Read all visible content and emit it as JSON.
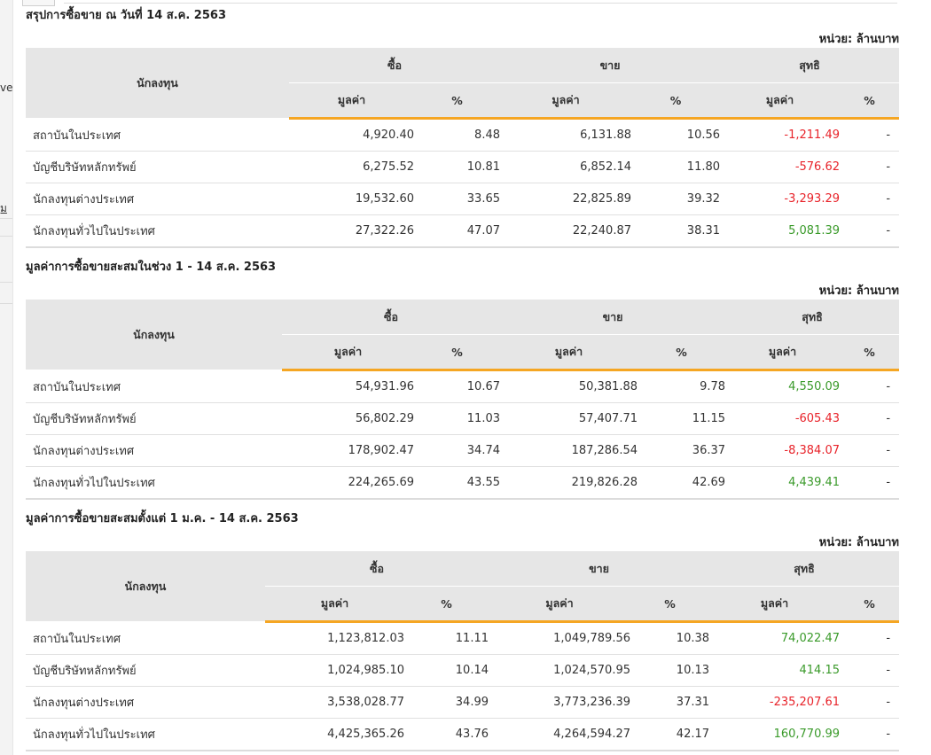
{
  "left_fragments": [
    "ve",
    "ุ้ม"
  ],
  "unit_label": "หน่วย: ล้านบาท",
  "headers": {
    "investor": "นักลงทุน",
    "buy": "ซื้อ",
    "sell": "ขาย",
    "net": "สุทธิ",
    "value": "มูลค่า",
    "pct": "%"
  },
  "sections": [
    {
      "title": "สรุปการซื้อขาย ณ วันที่ 14 ส.ค. 2563",
      "rows": [
        {
          "name": "สถาบันในประเทศ",
          "buy_value": "4,920.40",
          "buy_pct": "8.48",
          "sell_value": "6,131.88",
          "sell_pct": "10.56",
          "net_value": "-1,211.49",
          "net_pct": "-"
        },
        {
          "name": "บัญชีบริษัทหลักทรัพย์",
          "buy_value": "6,275.52",
          "buy_pct": "10.81",
          "sell_value": "6,852.14",
          "sell_pct": "11.80",
          "net_value": "-576.62",
          "net_pct": "-"
        },
        {
          "name": "นักลงทุนต่างประเทศ",
          "buy_value": "19,532.60",
          "buy_pct": "33.65",
          "sell_value": "22,825.89",
          "sell_pct": "39.32",
          "net_value": "-3,293.29",
          "net_pct": "-"
        },
        {
          "name": "นักลงทุนทั่วไปในประเทศ",
          "buy_value": "27,322.26",
          "buy_pct": "47.07",
          "sell_value": "22,240.87",
          "sell_pct": "38.31",
          "net_value": "5,081.39",
          "net_pct": "-"
        }
      ]
    },
    {
      "title": "มูลค่าการซื้อขายสะสมในช่วง 1 - 14 ส.ค. 2563",
      "rows": [
        {
          "name": "สถาบันในประเทศ",
          "buy_value": "54,931.96",
          "buy_pct": "10.67",
          "sell_value": "50,381.88",
          "sell_pct": "9.78",
          "net_value": "4,550.09",
          "net_pct": "-"
        },
        {
          "name": "บัญชีบริษัทหลักทรัพย์",
          "buy_value": "56,802.29",
          "buy_pct": "11.03",
          "sell_value": "57,407.71",
          "sell_pct": "11.15",
          "net_value": "-605.43",
          "net_pct": "-"
        },
        {
          "name": "นักลงทุนต่างประเทศ",
          "buy_value": "178,902.47",
          "buy_pct": "34.74",
          "sell_value": "187,286.54",
          "sell_pct": "36.37",
          "net_value": "-8,384.07",
          "net_pct": "-"
        },
        {
          "name": "นักลงทุนทั่วไปในประเทศ",
          "buy_value": "224,265.69",
          "buy_pct": "43.55",
          "sell_value": "219,826.28",
          "sell_pct": "42.69",
          "net_value": "4,439.41",
          "net_pct": "-"
        }
      ]
    },
    {
      "title": "มูลค่าการซื้อขายสะสมตั้งแต่ 1 ม.ค. - 14 ส.ค. 2563",
      "rows": [
        {
          "name": "สถาบันในประเทศ",
          "buy_value": "1,123,812.03",
          "buy_pct": "11.11",
          "sell_value": "1,049,789.56",
          "sell_pct": "10.38",
          "net_value": "74,022.47",
          "net_pct": "-"
        },
        {
          "name": "บัญชีบริษัทหลักทรัพย์",
          "buy_value": "1,024,985.10",
          "buy_pct": "10.14",
          "sell_value": "1,024,570.95",
          "sell_pct": "10.13",
          "net_value": "414.15",
          "net_pct": "-"
        },
        {
          "name": "นักลงทุนต่างประเทศ",
          "buy_value": "3,538,028.77",
          "buy_pct": "34.99",
          "sell_value": "3,773,236.39",
          "sell_pct": "37.31",
          "net_value": "-235,207.61",
          "net_pct": "-"
        },
        {
          "name": "นักลงทุนทั่วไปในประเทศ",
          "buy_value": "4,425,365.26",
          "buy_pct": "43.76",
          "sell_value": "4,264,594.27",
          "sell_pct": "42.17",
          "net_value": "160,770.99",
          "net_pct": "-"
        }
      ]
    }
  ],
  "colors": {
    "negative": "#e8232a",
    "positive": "#3a9a2a",
    "accent_underline": "#f5a623",
    "header_bg": "#e6e6e6"
  }
}
